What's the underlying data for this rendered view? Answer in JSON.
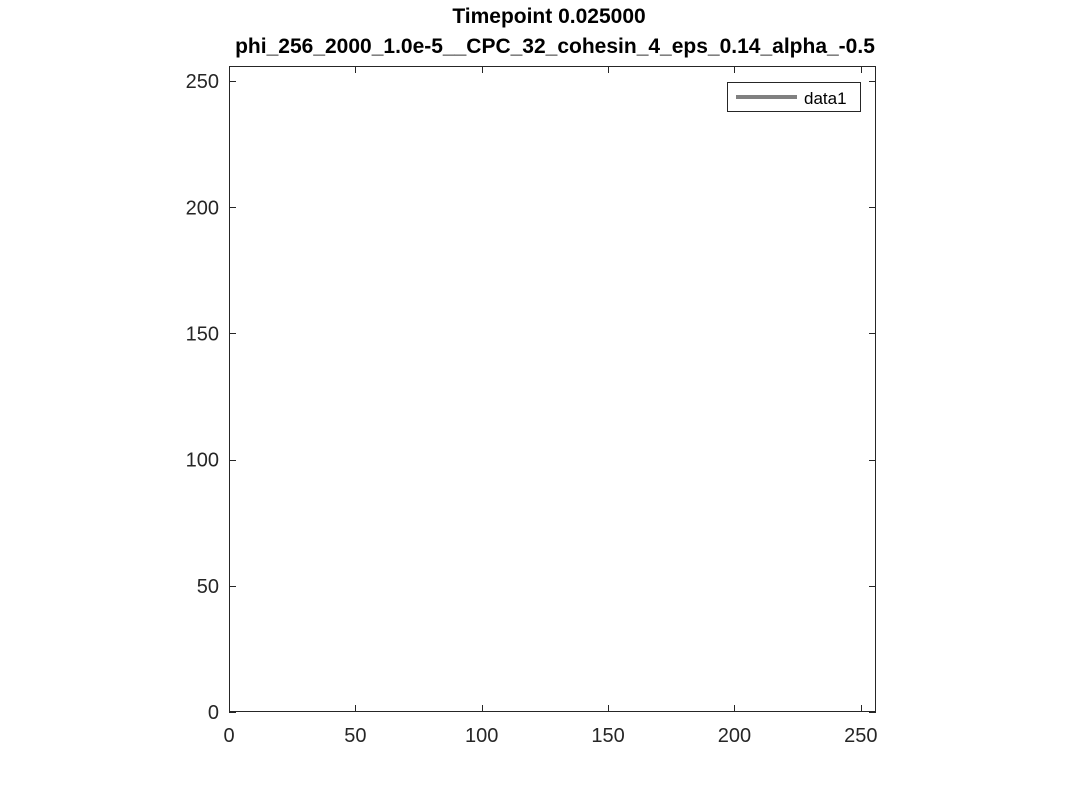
{
  "chart_data": {
    "type": "line",
    "title": "Timepoint 0.025000",
    "subtitle": "phi_256_2000_1.0e-5__CPC_32_cohesin_4_eps_0.14_alpha_-0.5",
    "xlabel": "",
    "ylabel": "",
    "xlim": [
      0,
      256
    ],
    "ylim": [
      0,
      256
    ],
    "xticks": [
      0,
      50,
      100,
      150,
      200,
      250
    ],
    "yticks": [
      0,
      50,
      100,
      150,
      200,
      250
    ],
    "xtick_labels": [
      "0",
      "50",
      "100",
      "150",
      "200",
      "250"
    ],
    "ytick_labels": [
      "0",
      "50",
      "100",
      "150",
      "200",
      "250"
    ],
    "grid": false,
    "legend_position": "top-right",
    "series": [
      {
        "name": "data1",
        "color": "#808080",
        "x": [],
        "y": []
      }
    ]
  }
}
